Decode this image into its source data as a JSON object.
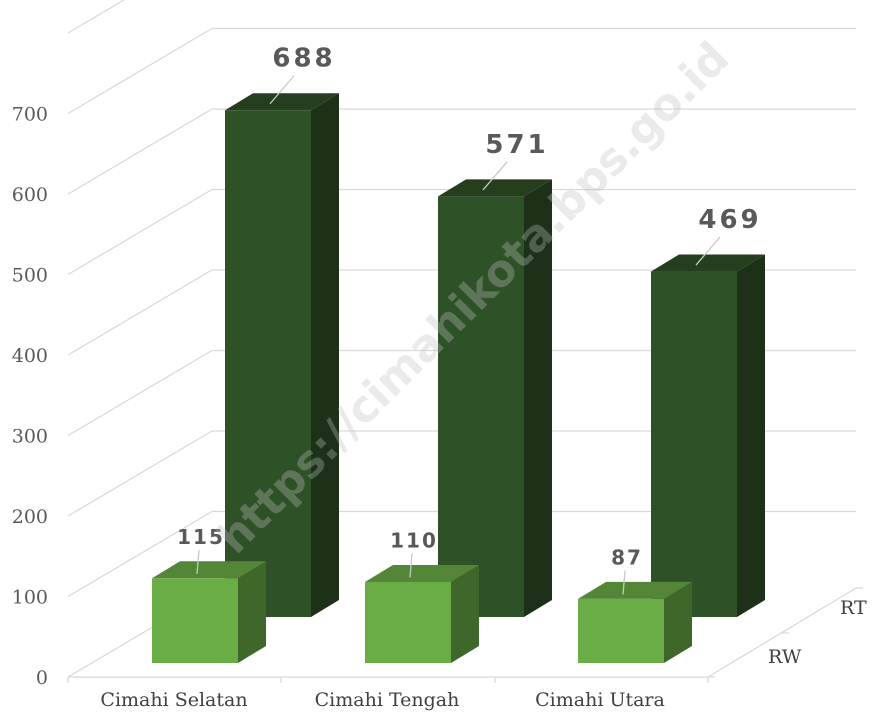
{
  "chart_data": {
    "type": "bar",
    "categories": [
      "Cimahi Selatan",
      "Cimahi Tengah",
      "Cimahi Utara"
    ],
    "series": [
      {
        "name": "RW",
        "values": [
          115,
          110,
          87
        ],
        "color": "#6aac46"
      },
      {
        "name": "RT",
        "values": [
          688,
          571,
          469
        ],
        "color": "#2f5127"
      }
    ],
    "yticks": [
      0,
      100,
      200,
      300,
      400,
      500,
      600,
      700
    ],
    "ylim": [
      0,
      800
    ],
    "grid": true,
    "three_d": true
  },
  "watermark": "https://cimahikota.bps.go.id"
}
